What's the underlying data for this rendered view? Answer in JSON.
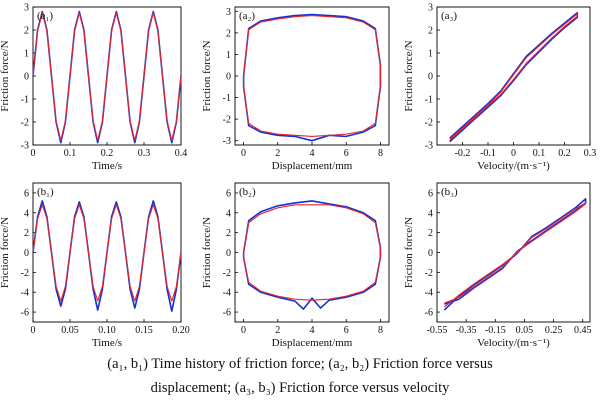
{
  "colors": {
    "measured": "#1530d8",
    "simulated": "#e8262a",
    "axis": "#000000"
  },
  "caption": {
    "line1": "(a₁, b₁) Time history of friction force; (a₂, b₂) Friction force versus",
    "line2": "displacement; (a₃, b₃) Friction force versus velocity"
  },
  "chart_data": [
    {
      "id": "a1",
      "panel_label": "(a₁)",
      "type": "line",
      "xlabel": "Time/s",
      "ylabel": "Friction force/N",
      "xlim": [
        0,
        0.4
      ],
      "ylim": [
        -3,
        3
      ],
      "xticks": [
        0,
        0.1,
        0.2,
        0.3,
        0.4
      ],
      "xticklabels": [
        "0",
        "0.1",
        "0.2",
        "0.3",
        "0.4"
      ],
      "yticks": [
        -3,
        -2,
        -1,
        0,
        1,
        2,
        3
      ],
      "yticklabels": [
        "-3",
        "-2",
        "-1",
        "0",
        "1",
        "2",
        "3"
      ],
      "series": [
        {
          "color": "blue",
          "x": [
            0,
            0.0125,
            0.025,
            0.0375,
            0.05,
            0.0625,
            0.075,
            0.0875,
            0.1,
            0.1125,
            0.125,
            0.1375,
            0.15,
            0.1625,
            0.175,
            0.1875,
            0.2,
            0.2125,
            0.225,
            0.2375,
            0.25,
            0.2625,
            0.275,
            0.2875,
            0.3,
            0.3125,
            0.325,
            0.3375,
            0.35,
            0.3625,
            0.375,
            0.3875,
            0.4
          ],
          "y": [
            0,
            2.0,
            2.8,
            2.0,
            0,
            -2.0,
            -2.9,
            -2.0,
            0,
            2.0,
            2.8,
            2.0,
            0,
            -2.0,
            -2.9,
            -2.0,
            0,
            2.0,
            2.8,
            2.0,
            0,
            -2.0,
            -2.9,
            -2.0,
            0,
            2.0,
            2.8,
            2.0,
            0,
            -2.0,
            -2.9,
            -2.0,
            0
          ]
        },
        {
          "color": "red",
          "x": [
            0,
            0.0125,
            0.025,
            0.0375,
            0.05,
            0.0625,
            0.075,
            0.0875,
            0.1,
            0.1125,
            0.125,
            0.1375,
            0.15,
            0.1625,
            0.175,
            0.1875,
            0.2,
            0.2125,
            0.225,
            0.2375,
            0.25,
            0.2625,
            0.275,
            0.2875,
            0.3,
            0.3125,
            0.325,
            0.3375,
            0.35,
            0.3625,
            0.375,
            0.3875,
            0.4
          ],
          "y": [
            0,
            1.95,
            2.75,
            1.95,
            0,
            -1.95,
            -2.8,
            -1.95,
            0,
            1.95,
            2.75,
            1.95,
            0,
            -1.95,
            -2.8,
            -1.95,
            0,
            1.95,
            2.75,
            1.95,
            0,
            -1.95,
            -2.8,
            -1.95,
            0,
            1.95,
            2.75,
            1.95,
            0,
            -1.95,
            -2.8,
            -1.95,
            0
          ]
        }
      ]
    },
    {
      "id": "a2",
      "panel_label": "(a₂)",
      "type": "line",
      "xlabel": "Displacement/mm",
      "ylabel": "Friction force/N",
      "xlim": [
        -0.5,
        8.5
      ],
      "ylim": [
        -3.2,
        3.2
      ],
      "xticks": [
        0,
        2,
        4,
        6,
        8
      ],
      "xticklabels": [
        "0",
        "2",
        "4",
        "6",
        "8"
      ],
      "yticks": [
        -3,
        -2,
        -1,
        0,
        1,
        2,
        3
      ],
      "yticklabels": [
        "-3",
        "-2",
        "-1",
        "0",
        "1",
        "2",
        "3"
      ],
      "series": [
        {
          "color": "blue",
          "x": [
            0,
            0.3,
            1,
            2,
            3,
            4,
            5,
            6,
            7,
            7.7,
            8,
            8,
            7.7,
            7,
            6,
            5,
            4,
            3,
            2,
            1,
            0.3,
            0,
            0
          ],
          "y": [
            0,
            2.2,
            2.55,
            2.7,
            2.8,
            2.85,
            2.8,
            2.75,
            2.55,
            2.2,
            0.5,
            -0.5,
            -2.3,
            -2.6,
            -2.8,
            -2.75,
            -3.0,
            -2.8,
            -2.75,
            -2.6,
            -2.3,
            -0.5,
            0
          ]
        },
        {
          "color": "red",
          "x": [
            0,
            0.3,
            1,
            2,
            3,
            4,
            5,
            6,
            7,
            7.7,
            8,
            8,
            7.7,
            7,
            6,
            5,
            4,
            3,
            2,
            1,
            0.3,
            0,
            0
          ],
          "y": [
            0,
            2.15,
            2.5,
            2.65,
            2.75,
            2.8,
            2.75,
            2.7,
            2.5,
            2.15,
            0.5,
            -0.5,
            -2.2,
            -2.55,
            -2.7,
            -2.75,
            -2.8,
            -2.75,
            -2.7,
            -2.55,
            -2.2,
            -0.5,
            0
          ]
        }
      ]
    },
    {
      "id": "a3",
      "panel_label": "(a₃)",
      "type": "line",
      "xlabel": "Velocity/(m·s⁻¹)",
      "ylabel": "Friction force/N",
      "xlim": [
        -0.3,
        0.3
      ],
      "ylim": [
        -3,
        3
      ],
      "xticks": [
        -0.2,
        -0.1,
        0,
        0.1,
        0.2,
        0.3
      ],
      "xticklabels": [
        "-0.2",
        "-0.1",
        "0",
        "0.1",
        "0.2",
        "0.3"
      ],
      "yticks": [
        -3,
        -2,
        -1,
        0,
        1,
        2,
        3
      ],
      "yticklabels": [
        "-3",
        "-2",
        "-1",
        "0",
        "1",
        "2",
        "3"
      ],
      "series": [
        {
          "color": "blue",
          "x": [
            -0.25,
            -0.2,
            -0.15,
            -0.1,
            -0.05,
            0,
            0.05,
            0.1,
            0.15,
            0.2,
            0.25,
            0.25,
            0.2,
            0.15,
            0.1,
            0.05,
            0,
            -0.05,
            -0.1,
            -0.15,
            -0.2,
            -0.25
          ],
          "y": [
            -2.7,
            -2.2,
            -1.7,
            -1.2,
            -0.65,
            0.1,
            0.85,
            1.35,
            1.85,
            2.3,
            2.75,
            2.55,
            2.1,
            1.6,
            1.05,
            0.5,
            -0.2,
            -0.85,
            -1.35,
            -1.85,
            -2.35,
            -2.85
          ]
        },
        {
          "color": "red",
          "x": [
            -0.25,
            -0.2,
            -0.15,
            -0.1,
            -0.05,
            0,
            0.05,
            0.1,
            0.15,
            0.2,
            0.25,
            0.25,
            0.2,
            0.15,
            0.1,
            0.05,
            0,
            -0.05,
            -0.1,
            -0.15,
            -0.2,
            -0.25
          ],
          "y": [
            -2.75,
            -2.25,
            -1.75,
            -1.25,
            -0.7,
            0.05,
            0.8,
            1.3,
            1.8,
            2.25,
            2.7,
            2.6,
            2.15,
            1.65,
            1.1,
            0.55,
            -0.15,
            -0.8,
            -1.3,
            -1.8,
            -2.3,
            -2.8
          ]
        }
      ]
    },
    {
      "id": "b1",
      "panel_label": "(b₁)",
      "type": "line",
      "xlabel": "Time/s",
      "ylabel": "Friction force/N",
      "xlim": [
        0,
        0.2
      ],
      "ylim": [
        -7,
        7
      ],
      "xticks": [
        0,
        0.05,
        0.1,
        0.15,
        0.2
      ],
      "xticklabels": [
        "0",
        "0.05",
        "0.10",
        "0.15",
        "0.20"
      ],
      "yticks": [
        -6,
        -4,
        -2,
        0,
        2,
        4,
        6
      ],
      "yticklabels": [
        "-6",
        "-4",
        "-2",
        "0",
        "2",
        "4",
        "6"
      ],
      "series": [
        {
          "color": "blue",
          "x": [
            0,
            0.00625,
            0.0125,
            0.01875,
            0.025,
            0.03125,
            0.0375,
            0.04375,
            0.05,
            0.05625,
            0.0625,
            0.06875,
            0.075,
            0.08125,
            0.0875,
            0.09375,
            0.1,
            0.10625,
            0.1125,
            0.11875,
            0.125,
            0.13125,
            0.1375,
            0.14375,
            0.15,
            0.15625,
            0.1625,
            0.16875,
            0.175,
            0.18125,
            0.1875,
            0.19375,
            0.2
          ],
          "y": [
            0,
            3.6,
            5.2,
            3.6,
            0,
            -3.7,
            -5.4,
            -3.7,
            0,
            3.6,
            5.1,
            3.6,
            0,
            -3.7,
            -5.8,
            -3.7,
            0,
            3.6,
            5.1,
            3.6,
            0,
            -3.7,
            -5.6,
            -3.7,
            0,
            3.6,
            5.2,
            3.6,
            0,
            -3.7,
            -5.9,
            -3.7,
            0
          ]
        },
        {
          "color": "red",
          "x": [
            0,
            0.00625,
            0.0125,
            0.01875,
            0.025,
            0.03125,
            0.0375,
            0.04375,
            0.05,
            0.05625,
            0.0625,
            0.06875,
            0.075,
            0.08125,
            0.0875,
            0.09375,
            0.1,
            0.10625,
            0.1125,
            0.11875,
            0.125,
            0.13125,
            0.1375,
            0.14375,
            0.15,
            0.15625,
            0.1625,
            0.16875,
            0.175,
            0.18125,
            0.1875,
            0.19375,
            0.2
          ],
          "y": [
            0,
            3.4,
            4.8,
            3.4,
            0,
            -3.4,
            -4.9,
            -3.4,
            0,
            3.4,
            4.8,
            3.4,
            0,
            -3.4,
            -4.9,
            -3.4,
            0,
            3.4,
            4.8,
            3.4,
            0,
            -3.4,
            -4.9,
            -3.4,
            0,
            3.4,
            4.8,
            3.4,
            0,
            -3.4,
            -4.9,
            -3.4,
            0
          ]
        }
      ]
    },
    {
      "id": "b2",
      "panel_label": "(b₂)",
      "type": "line",
      "xlabel": "Displacement/mm",
      "ylabel": "Friction force/N",
      "xlim": [
        -0.5,
        8.5
      ],
      "ylim": [
        -7,
        7
      ],
      "xticks": [
        0,
        2,
        4,
        6,
        8
      ],
      "xticklabels": [
        "0",
        "2",
        "4",
        "6",
        "8"
      ],
      "yticks": [
        -6,
        -4,
        -2,
        0,
        2,
        4,
        6
      ],
      "yticklabels": [
        "-6",
        "-4",
        "-2",
        "0",
        "2",
        "4",
        "6"
      ],
      "series": [
        {
          "color": "blue",
          "x": [
            0,
            0.3,
            1,
            2,
            3,
            4,
            5,
            6,
            7,
            7.7,
            8,
            8,
            7.7,
            7,
            6,
            5,
            4.5,
            4,
            3.5,
            3,
            2,
            1,
            0.3,
            0,
            0
          ],
          "y": [
            0,
            3.2,
            4.1,
            4.7,
            5.0,
            5.2,
            4.9,
            4.6,
            4.0,
            3.2,
            0.5,
            -0.5,
            -3.2,
            -4.0,
            -4.5,
            -4.8,
            -5.6,
            -4.6,
            -5.7,
            -4.9,
            -4.5,
            -4.0,
            -3.2,
            -0.5,
            0
          ]
        },
        {
          "color": "red",
          "x": [
            0,
            0.3,
            1,
            2,
            3,
            4,
            5,
            6,
            7,
            7.7,
            8,
            8,
            7.7,
            7,
            6,
            5,
            4,
            3,
            2,
            1,
            0.3,
            0,
            0
          ],
          "y": [
            0,
            3.0,
            3.9,
            4.5,
            4.8,
            4.8,
            4.8,
            4.5,
            3.9,
            3.0,
            0.5,
            -0.5,
            -3.0,
            -3.9,
            -4.4,
            -4.7,
            -4.8,
            -4.7,
            -4.4,
            -3.9,
            -3.0,
            -0.5,
            0
          ]
        }
      ]
    },
    {
      "id": "b3",
      "panel_label": "(b₃)",
      "type": "line",
      "xlabel": "Velocity/(m·s⁻¹)",
      "ylabel": "Friction force/N",
      "xlim": [
        -0.55,
        0.5
      ],
      "ylim": [
        -7,
        7
      ],
      "xticks": [
        -0.55,
        -0.35,
        -0.15,
        0.05,
        0.25,
        0.45
      ],
      "xticklabels": [
        "-0.55",
        "-0.35",
        "-0.15",
        "0.05",
        "0.25",
        "0.45"
      ],
      "yticks": [
        -6,
        -4,
        -2,
        0,
        2,
        4,
        6
      ],
      "yticklabels": [
        "-6",
        "-4",
        "-2",
        "0",
        "2",
        "4",
        "6"
      ],
      "series": [
        {
          "color": "blue",
          "x": [
            -0.5,
            -0.4,
            -0.3,
            -0.2,
            -0.1,
            0,
            0.1,
            0.2,
            0.3,
            0.4,
            0.47,
            0.47,
            0.4,
            0.3,
            0.2,
            0.1,
            0,
            -0.1,
            -0.2,
            -0.3,
            -0.4,
            -0.5
          ],
          "y": [
            -5.8,
            -4.4,
            -3.3,
            -2.3,
            -1.3,
            -0.1,
            1.6,
            2.5,
            3.5,
            4.5,
            5.4,
            5.0,
            4.2,
            3.2,
            2.2,
            1.2,
            0.1,
            -1.6,
            -2.6,
            -3.6,
            -4.7,
            -5.2
          ]
        },
        {
          "color": "red",
          "x": [
            -0.5,
            -0.4,
            -0.3,
            -0.2,
            -0.1,
            0,
            0.1,
            0.2,
            0.3,
            0.4,
            0.47,
            0.47,
            0.4,
            0.3,
            0.2,
            0.1,
            0,
            -0.1,
            -0.2,
            -0.3,
            -0.4,
            -0.5
          ],
          "y": [
            -5.5,
            -4.3,
            -3.2,
            -2.2,
            -1.2,
            -0.05,
            1.5,
            2.4,
            3.4,
            4.4,
            5.0,
            4.9,
            4.1,
            3.1,
            2.1,
            1.1,
            0.05,
            -1.5,
            -2.5,
            -3.5,
            -4.5,
            -5.1
          ]
        }
      ]
    }
  ]
}
